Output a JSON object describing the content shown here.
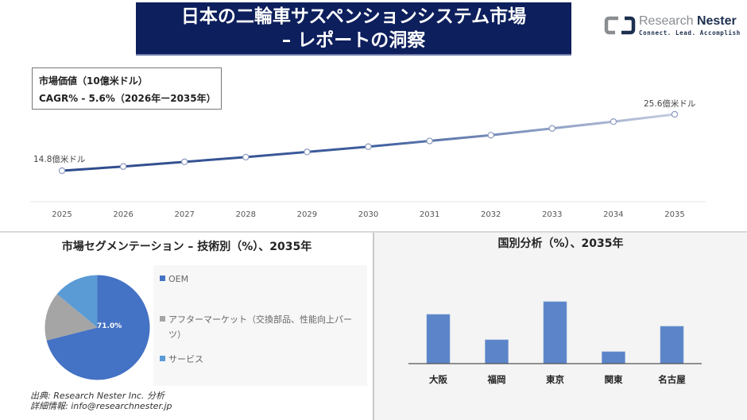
{
  "header": {
    "title_line1": "日本の二輪車サスペンションシステム市場",
    "title_line2": "– レポートの洞察",
    "banner_color": "#0d1f5c"
  },
  "logo": {
    "brand_part1": "Research",
    "brand_part2": "Nester",
    "tagline": "Connect. Lead. Accomplish",
    "icon": "research-nester-logo-icon"
  },
  "info_box": {
    "line1": "市場価値（10億米ドル）",
    "line2": "CAGR% - 5.6%（2026年ー2035年）"
  },
  "segmentation": {
    "title": "市場セグメンテーション – 技術別（%）、2035年",
    "center_label": "71.0%",
    "legend": [
      {
        "label": "OEM",
        "color": "#4472c4"
      },
      {
        "label": "アフターマーケット（交換部品、性能向上パー",
        "label_cont": "ツ）",
        "color": "#a5a5a5"
      },
      {
        "label": "サービス",
        "color": "#5b9bd5"
      }
    ]
  },
  "geography": {
    "title": "国別分析（%）、2035年"
  },
  "footer": {
    "source": "出典: Research Nester Inc. 分析",
    "contact": "詳細情報: info@researchnester.jp"
  },
  "chart_data": [
    {
      "type": "line",
      "title": "市場価値（10億米ドル）",
      "categories": [
        "2025",
        "2026",
        "2027",
        "2028",
        "2029",
        "2030",
        "2031",
        "2032",
        "2033",
        "2034",
        "2035"
      ],
      "values": [
        14.8,
        15.6,
        16.5,
        17.4,
        18.4,
        19.4,
        20.5,
        21.6,
        22.9,
        24.2,
        25.6
      ],
      "annotations": [
        {
          "x": "2025",
          "text": "14.8億米ドル"
        },
        {
          "x": "2035",
          "text": "25.6億米ドル"
        }
      ],
      "series_color_start": "#2e4a8a",
      "series_color_end": "#c5cde0",
      "grid": false,
      "xlabel": "",
      "ylabel": ""
    },
    {
      "type": "pie",
      "title": "市場セグメンテーション – 技術別（%）、2035年",
      "categories": [
        "OEM",
        "アフターマーケット（交換部品、性能向上パーツ）",
        "サービス"
      ],
      "values": [
        71.0,
        15.0,
        14.0
      ],
      "colors": [
        "#4472c4",
        "#a5a5a5",
        "#5b9bd5"
      ],
      "data_labels": [
        "71.0%"
      ],
      "legend_position": "right"
    },
    {
      "type": "bar",
      "title": "国別分析（%）、2035年",
      "categories": [
        "大阪",
        "福岡",
        "東京",
        "関東",
        "名古屋"
      ],
      "values": [
        62,
        30,
        78,
        15,
        47
      ],
      "value_unit": "relative bar height (no axis shown)",
      "color": "#5b84c9",
      "grid": false,
      "xlabel": "",
      "ylabel": ""
    }
  ]
}
